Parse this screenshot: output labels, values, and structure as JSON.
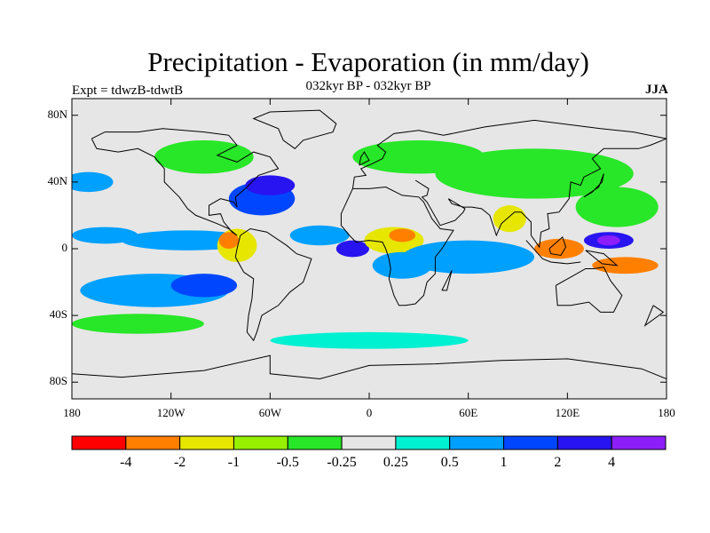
{
  "title": "Precipitation - Evaporation (in mm/day)",
  "subtitle": "032kyr BP - 032kyr BP",
  "left_label": "Expt = tdwzB-tdwtB",
  "right_label": "JJA",
  "chart_data": {
    "type": "heatmap",
    "title": "Precipitation - Evaporation (in mm/day)",
    "x_ticks": [
      "180",
      "120W",
      "60W",
      "0",
      "60E",
      "120E",
      "180"
    ],
    "x_tick_values": [
      -180,
      -120,
      -60,
      0,
      60,
      120,
      180
    ],
    "y_ticks": [
      "80N",
      "40N",
      "0",
      "40S",
      "80S"
    ],
    "y_tick_values": [
      80,
      40,
      0,
      -40,
      -80
    ],
    "xlim": [
      -180,
      180
    ],
    "ylim": [
      -90,
      90
    ],
    "colorbar": {
      "colors": [
        "#ff0000",
        "#ff8000",
        "#e6e600",
        "#96f000",
        "#28e628",
        "#e6e6e6",
        "#00f0d2",
        "#00a0ff",
        "#0046ff",
        "#2814f0",
        "#8c1efa"
      ],
      "labels": [
        "-4",
        "-2",
        "-1",
        "-0.5",
        "-0.25",
        "0.25",
        "0.5",
        "1",
        "2",
        "4"
      ]
    },
    "regions": [
      {
        "lon": -110,
        "lat": 5,
        "rlon": 40,
        "rlat": 6,
        "level": 7
      },
      {
        "lon": -160,
        "lat": 8,
        "rlon": 20,
        "rlat": 5,
        "level": 7
      },
      {
        "lon": -130,
        "lat": -25,
        "rlon": 45,
        "rlat": 10,
        "level": 7
      },
      {
        "lon": -100,
        "lat": -22,
        "rlon": 20,
        "rlat": 7,
        "level": 8
      },
      {
        "lon": -80,
        "lat": 2,
        "rlon": 12,
        "rlat": 10,
        "level": 2
      },
      {
        "lon": -85,
        "lat": 5,
        "rlon": 6,
        "rlat": 5,
        "level": 1
      },
      {
        "lon": -65,
        "lat": 30,
        "rlon": 20,
        "rlat": 10,
        "level": 8
      },
      {
        "lon": -60,
        "lat": 38,
        "rlon": 15,
        "rlat": 6,
        "level": 9
      },
      {
        "lon": -30,
        "lat": 8,
        "rlon": 18,
        "rlat": 6,
        "level": 7
      },
      {
        "lon": -10,
        "lat": 0,
        "rlon": 10,
        "rlat": 5,
        "level": 9
      },
      {
        "lon": 15,
        "lat": 5,
        "rlon": 18,
        "rlat": 8,
        "level": 2
      },
      {
        "lon": 20,
        "lat": 8,
        "rlon": 8,
        "rlat": 4,
        "level": 1
      },
      {
        "lon": 20,
        "lat": -10,
        "rlon": 18,
        "rlat": 8,
        "level": 7
      },
      {
        "lon": 60,
        "lat": -5,
        "rlon": 40,
        "rlat": 10,
        "level": 7
      },
      {
        "lon": 85,
        "lat": 18,
        "rlon": 10,
        "rlat": 8,
        "level": 2
      },
      {
        "lon": 115,
        "lat": 0,
        "rlon": 15,
        "rlat": 6,
        "level": 1
      },
      {
        "lon": 145,
        "lat": 5,
        "rlon": 15,
        "rlat": 5,
        "level": 9
      },
      {
        "lon": 145,
        "lat": 5,
        "rlon": 7,
        "rlat": 3,
        "level": 10
      },
      {
        "lon": 155,
        "lat": -10,
        "rlon": 20,
        "rlat": 5,
        "level": 1
      },
      {
        "lon": 150,
        "lat": 25,
        "rlon": 25,
        "rlat": 12,
        "level": 4
      },
      {
        "lon": 100,
        "lat": 45,
        "rlon": 60,
        "rlat": 15,
        "level": 4
      },
      {
        "lon": 30,
        "lat": 55,
        "rlon": 40,
        "rlat": 10,
        "level": 4
      },
      {
        "lon": -100,
        "lat": 55,
        "rlon": 30,
        "rlat": 10,
        "level": 4
      },
      {
        "lon": -140,
        "lat": -45,
        "rlon": 40,
        "rlat": 6,
        "level": 4
      },
      {
        "lon": 0,
        "lat": -55,
        "rlon": 60,
        "rlat": 5,
        "level": 6
      },
      {
        "lon": -170,
        "lat": 40,
        "rlon": 15,
        "rlat": 6,
        "level": 7
      }
    ]
  }
}
